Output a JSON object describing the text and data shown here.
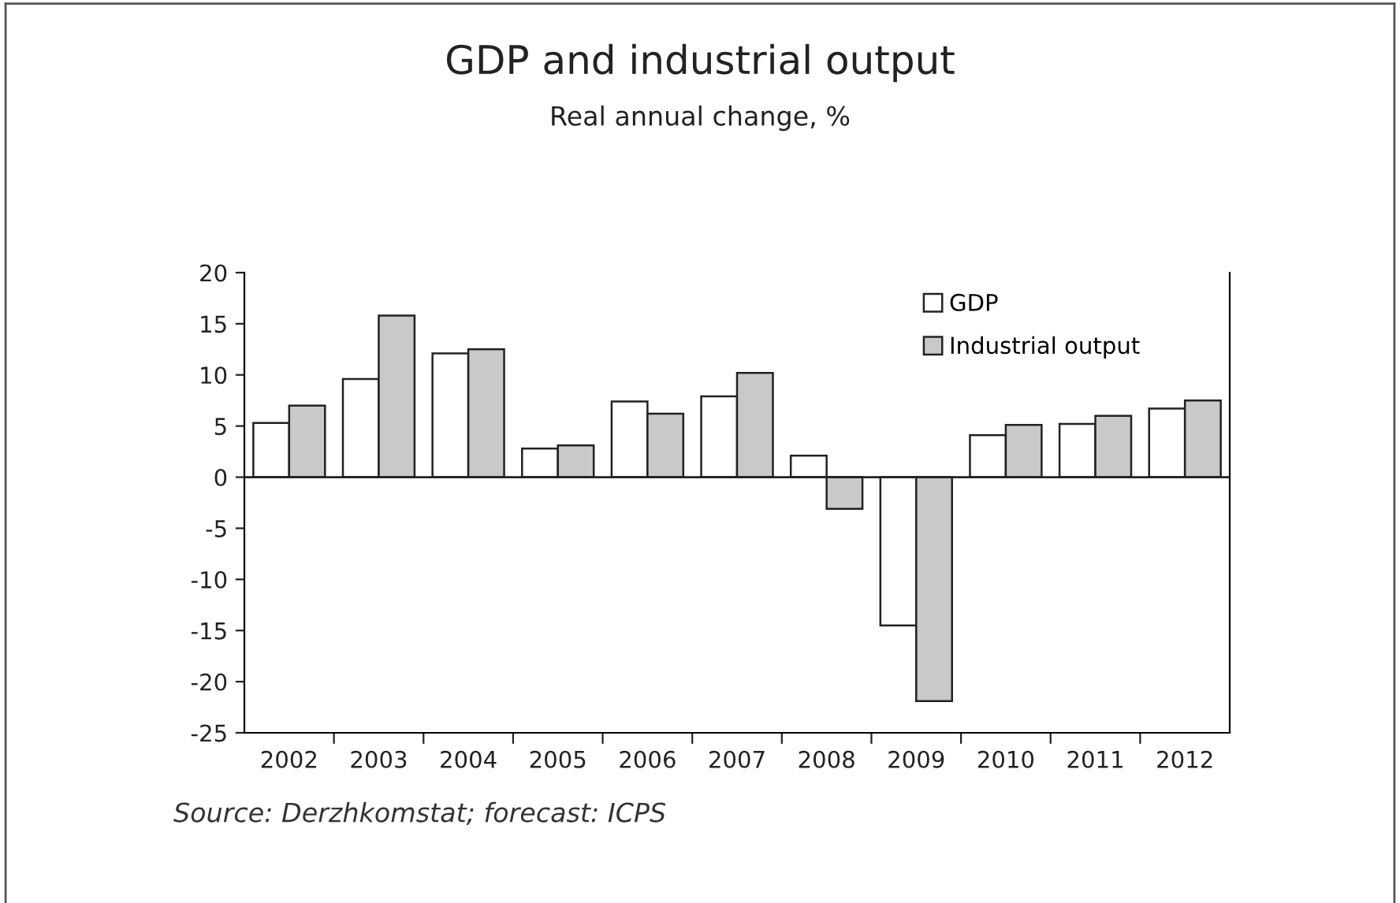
{
  "chart_data": {
    "type": "bar",
    "title": "GDP and industrial output",
    "subtitle": "Real annual change, %",
    "categories": [
      "2002",
      "2003",
      "2004",
      "2005",
      "2006",
      "2007",
      "2008",
      "2009",
      "2010",
      "2011",
      "2012"
    ],
    "series": [
      {
        "name": "GDP",
        "color": "#ffffff",
        "values": [
          5.3,
          9.6,
          12.1,
          2.8,
          7.4,
          7.9,
          2.1,
          -14.5,
          4.1,
          5.2,
          6.7
        ]
      },
      {
        "name": "Industrial output",
        "color": "#c8c9cb",
        "values": [
          7.0,
          15.8,
          12.5,
          3.1,
          6.2,
          10.2,
          -3.1,
          -21.9,
          5.1,
          6.0,
          7.5
        ]
      }
    ],
    "ylim": [
      -25,
      20
    ],
    "yticks": [
      -25,
      -20,
      -15,
      -10,
      -5,
      0,
      5,
      10,
      15,
      20
    ],
    "legend": "top right",
    "annotations": [
      "Source: Derzhkomstat; forecast: ICPS"
    ]
  }
}
